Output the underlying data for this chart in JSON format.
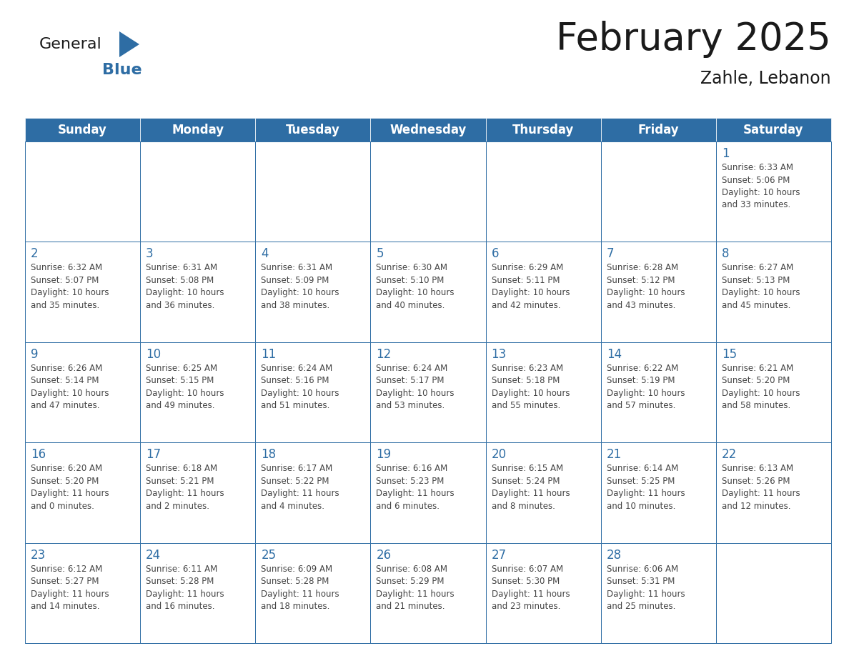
{
  "title": "February 2025",
  "subtitle": "Zahle, Lebanon",
  "header_color": "#2e6da4",
  "header_text_color": "#ffffff",
  "cell_bg_color": "#ffffff",
  "cell_border_color": "#2e6da4",
  "cell_alt_bg": "#f2f2f2",
  "day_number_color": "#2e6da4",
  "cell_text_color": "#444444",
  "background_color": "#ffffff",
  "days_of_week": [
    "Sunday",
    "Monday",
    "Tuesday",
    "Wednesday",
    "Thursday",
    "Friday",
    "Saturday"
  ],
  "weeks": [
    [
      {
        "day": null,
        "info": null
      },
      {
        "day": null,
        "info": null
      },
      {
        "day": null,
        "info": null
      },
      {
        "day": null,
        "info": null
      },
      {
        "day": null,
        "info": null
      },
      {
        "day": null,
        "info": null
      },
      {
        "day": 1,
        "info": "Sunrise: 6:33 AM\nSunset: 5:06 PM\nDaylight: 10 hours\nand 33 minutes."
      }
    ],
    [
      {
        "day": 2,
        "info": "Sunrise: 6:32 AM\nSunset: 5:07 PM\nDaylight: 10 hours\nand 35 minutes."
      },
      {
        "day": 3,
        "info": "Sunrise: 6:31 AM\nSunset: 5:08 PM\nDaylight: 10 hours\nand 36 minutes."
      },
      {
        "day": 4,
        "info": "Sunrise: 6:31 AM\nSunset: 5:09 PM\nDaylight: 10 hours\nand 38 minutes."
      },
      {
        "day": 5,
        "info": "Sunrise: 6:30 AM\nSunset: 5:10 PM\nDaylight: 10 hours\nand 40 minutes."
      },
      {
        "day": 6,
        "info": "Sunrise: 6:29 AM\nSunset: 5:11 PM\nDaylight: 10 hours\nand 42 minutes."
      },
      {
        "day": 7,
        "info": "Sunrise: 6:28 AM\nSunset: 5:12 PM\nDaylight: 10 hours\nand 43 minutes."
      },
      {
        "day": 8,
        "info": "Sunrise: 6:27 AM\nSunset: 5:13 PM\nDaylight: 10 hours\nand 45 minutes."
      }
    ],
    [
      {
        "day": 9,
        "info": "Sunrise: 6:26 AM\nSunset: 5:14 PM\nDaylight: 10 hours\nand 47 minutes."
      },
      {
        "day": 10,
        "info": "Sunrise: 6:25 AM\nSunset: 5:15 PM\nDaylight: 10 hours\nand 49 minutes."
      },
      {
        "day": 11,
        "info": "Sunrise: 6:24 AM\nSunset: 5:16 PM\nDaylight: 10 hours\nand 51 minutes."
      },
      {
        "day": 12,
        "info": "Sunrise: 6:24 AM\nSunset: 5:17 PM\nDaylight: 10 hours\nand 53 minutes."
      },
      {
        "day": 13,
        "info": "Sunrise: 6:23 AM\nSunset: 5:18 PM\nDaylight: 10 hours\nand 55 minutes."
      },
      {
        "day": 14,
        "info": "Sunrise: 6:22 AM\nSunset: 5:19 PM\nDaylight: 10 hours\nand 57 minutes."
      },
      {
        "day": 15,
        "info": "Sunrise: 6:21 AM\nSunset: 5:20 PM\nDaylight: 10 hours\nand 58 minutes."
      }
    ],
    [
      {
        "day": 16,
        "info": "Sunrise: 6:20 AM\nSunset: 5:20 PM\nDaylight: 11 hours\nand 0 minutes."
      },
      {
        "day": 17,
        "info": "Sunrise: 6:18 AM\nSunset: 5:21 PM\nDaylight: 11 hours\nand 2 minutes."
      },
      {
        "day": 18,
        "info": "Sunrise: 6:17 AM\nSunset: 5:22 PM\nDaylight: 11 hours\nand 4 minutes."
      },
      {
        "day": 19,
        "info": "Sunrise: 6:16 AM\nSunset: 5:23 PM\nDaylight: 11 hours\nand 6 minutes."
      },
      {
        "day": 20,
        "info": "Sunrise: 6:15 AM\nSunset: 5:24 PM\nDaylight: 11 hours\nand 8 minutes."
      },
      {
        "day": 21,
        "info": "Sunrise: 6:14 AM\nSunset: 5:25 PM\nDaylight: 11 hours\nand 10 minutes."
      },
      {
        "day": 22,
        "info": "Sunrise: 6:13 AM\nSunset: 5:26 PM\nDaylight: 11 hours\nand 12 minutes."
      }
    ],
    [
      {
        "day": 23,
        "info": "Sunrise: 6:12 AM\nSunset: 5:27 PM\nDaylight: 11 hours\nand 14 minutes."
      },
      {
        "day": 24,
        "info": "Sunrise: 6:11 AM\nSunset: 5:28 PM\nDaylight: 11 hours\nand 16 minutes."
      },
      {
        "day": 25,
        "info": "Sunrise: 6:09 AM\nSunset: 5:28 PM\nDaylight: 11 hours\nand 18 minutes."
      },
      {
        "day": 26,
        "info": "Sunrise: 6:08 AM\nSunset: 5:29 PM\nDaylight: 11 hours\nand 21 minutes."
      },
      {
        "day": 27,
        "info": "Sunrise: 6:07 AM\nSunset: 5:30 PM\nDaylight: 11 hours\nand 23 minutes."
      },
      {
        "day": 28,
        "info": "Sunrise: 6:06 AM\nSunset: 5:31 PM\nDaylight: 11 hours\nand 25 minutes."
      },
      {
        "day": null,
        "info": null
      }
    ]
  ],
  "logo_color_general": "#1a1a1a",
  "logo_color_blue": "#2e6da4",
  "title_fontsize": 38,
  "subtitle_fontsize": 17,
  "header_fontsize": 12,
  "day_num_fontsize": 12,
  "cell_text_fontsize": 8.5
}
